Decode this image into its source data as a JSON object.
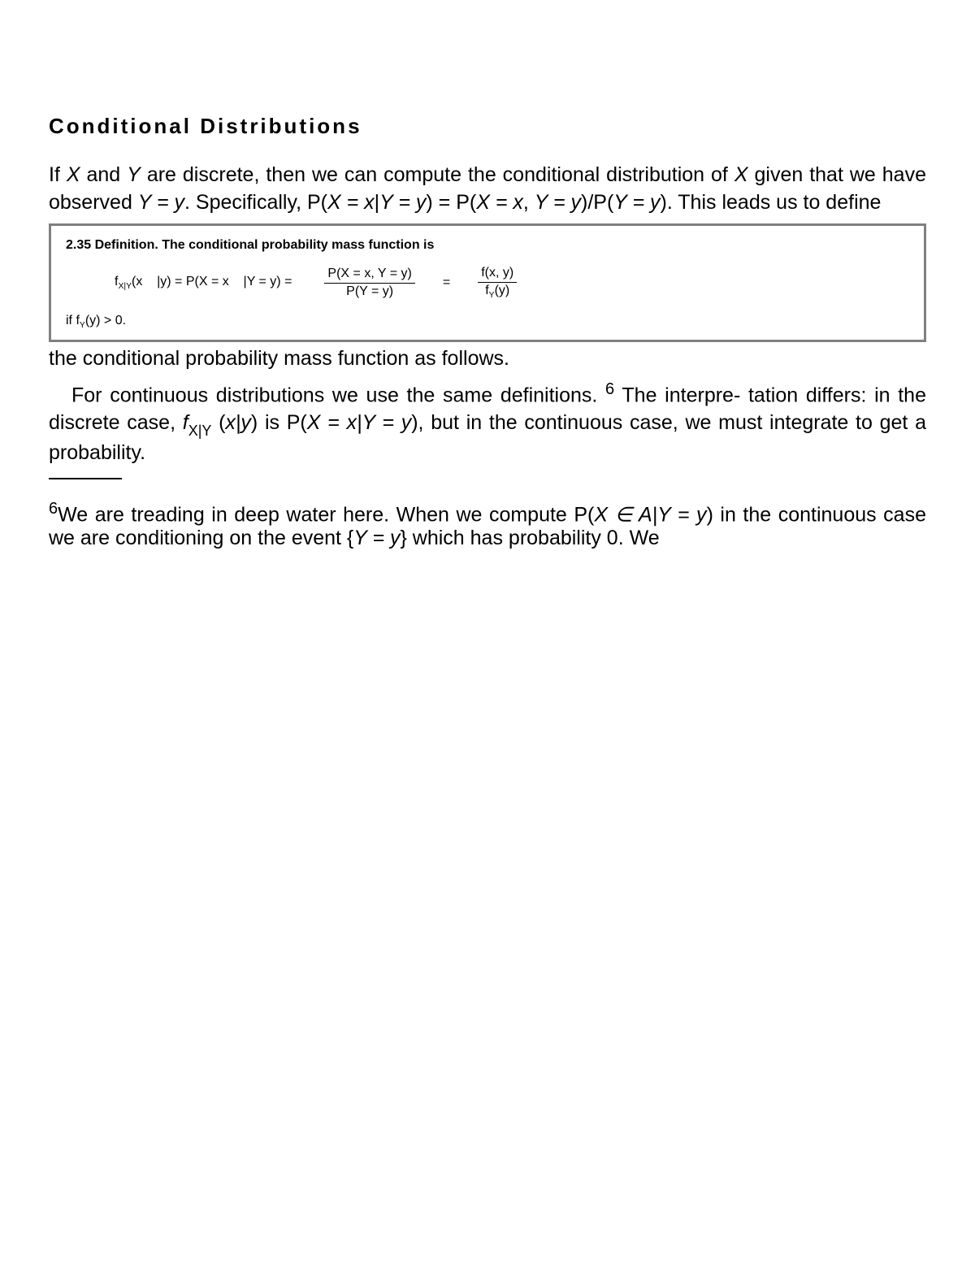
{
  "heading": "Conditional Distributions",
  "para1_a": "If ",
  "para1_X": "X",
  "para1_b": " and ",
  "para1_Y": "Y",
  "para1_c": " are discrete, then we can compute the conditional distribution of ",
  "para1_X2": "X",
  "para1_d": " given that we have observed ",
  "para1_Yeq": "Y = y",
  "para1_e": ". Specifically, P(",
  "para1_eq1a": "X = x",
  "para1_bar": "|",
  "para1_eq1b": "Y = y",
  "para1_f": ") = P(",
  "para1_eq2a": "X = x",
  "para1_comma": ", ",
  "para1_eq2b": "Y = y",
  "para1_g": ")/P(",
  "para1_eq3": "Y = y",
  "para1_h": "). This leads us to define",
  "def": {
    "title": "2.35 Definition. The conditional probability mass function is",
    "lhs_a": "f",
    "lhs_sub": "X|Y",
    "lhs_b": "(x",
    "lhs_c": "|y) = P(X = x",
    "lhs_d": "|Y = y) =",
    "frac1_num": "P(X = x, Y = y)",
    "frac1_den": "P(Y = y)",
    "frac2_num_a": "f(x, y)",
    "frac2_den_a": "f",
    "frac2_den_sub": "Y",
    "frac2_den_b": "(y)",
    "cond_a": "if f",
    "cond_sub": "Y",
    "cond_b": "(y) > 0."
  },
  "para2": "the conditional probability mass function as follows.",
  "para3_a": "For continuous distributions we use the same definitions. ",
  "para3_sup": "6",
  "para3_b": " The interpre- tation differs: in the discrete case, ",
  "para3_f": "f",
  "para3_fsub": "X|Y",
  "para3_c": " (",
  "para3_xy": "x|y",
  "para3_d": ") is P(",
  "para3_eq1": "X = x|Y = y",
  "para3_e": "), but in the continuous case, we must integrate to get a probability.",
  "footnote": {
    "sup": "6",
    "a": "We are treading in deep water here. When we compute P(",
    "eq1": "X ∈ A|Y = y",
    "b": ") in the continuous case we are conditioning on the event {",
    "eq2": "Y = y",
    "c": "} which has probability 0. We"
  }
}
